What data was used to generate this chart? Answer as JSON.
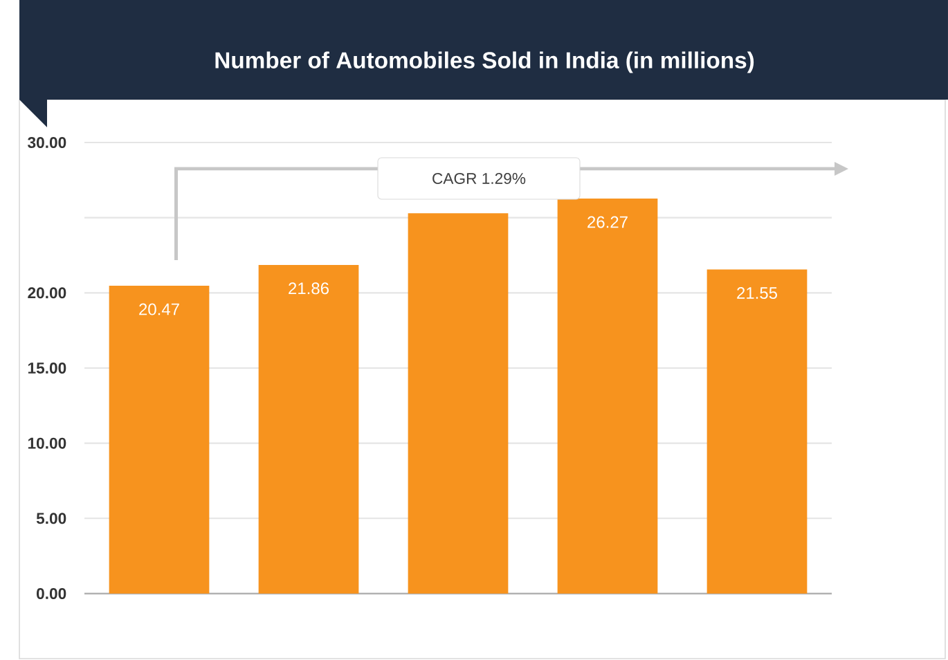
{
  "chart_data": {
    "type": "bar",
    "title": "Number of Automobiles Sold in India (in millions)",
    "categories": [
      null,
      null,
      null,
      null,
      null
    ],
    "values": [
      20.47,
      21.86,
      25.3,
      26.27,
      21.55
    ],
    "value_labels": [
      "20.47",
      "21.86",
      null,
      "26.27",
      "21.55"
    ],
    "color": "#f7931e",
    "ylim": [
      0,
      30
    ],
    "yticks": [
      {
        "value": 0,
        "label": "0.00"
      },
      {
        "value": 5,
        "label": "5.00"
      },
      {
        "value": 10,
        "label": "10.00"
      },
      {
        "value": 15,
        "label": "15.00"
      },
      {
        "value": 20,
        "label": "20.00"
      },
      {
        "value": 25,
        "label": null
      },
      {
        "value": 30,
        "label": "30.00"
      }
    ],
    "grid": "y",
    "annotations": [
      "CAGR 1.29%"
    ]
  }
}
